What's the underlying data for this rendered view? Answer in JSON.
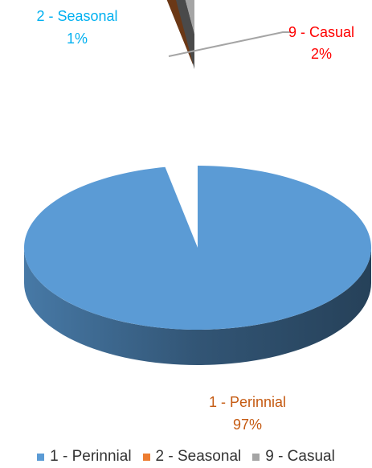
{
  "chart_data": {
    "type": "pie",
    "title": "",
    "categories": [
      "1 - Perinnial",
      "2 - Seasonal",
      "9 - Casual"
    ],
    "values": [
      97,
      1,
      2
    ],
    "value_unit": "%",
    "exploded": true,
    "three_d": true,
    "legend_position": "bottom",
    "colors": [
      "#5b9bd5",
      "#ed7d31",
      "#a5a5a5"
    ],
    "label_colors": [
      "#c55a11",
      "#00b0f0",
      "#ff0000"
    ],
    "data_labels": [
      {
        "name": "1 - Perinnial",
        "value": "97%"
      },
      {
        "name": "2 - Seasonal",
        "value": "1%"
      },
      {
        "name": "9 - Casual",
        "value": "2%"
      }
    ]
  }
}
